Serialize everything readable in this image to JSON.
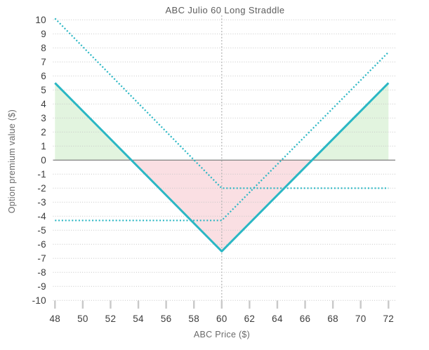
{
  "title": "ABC Julio 60 Long Straddle",
  "chart_data": {
    "type": "line",
    "title": "ABC Julio 60 Long Straddle",
    "xlabel": "ABC Price ($)",
    "ylabel": "Option premium value ($)",
    "xlim": [
      48,
      72
    ],
    "ylim": [
      -10,
      10
    ],
    "x_ticks": [
      48,
      50,
      52,
      54,
      56,
      58,
      60,
      62,
      64,
      66,
      68,
      70,
      72
    ],
    "y_ticks": [
      10,
      9,
      8,
      7,
      6,
      5,
      4,
      3,
      2,
      1,
      0,
      -1,
      -2,
      -3,
      -4,
      -5,
      -6,
      -7,
      -8,
      -9,
      -10
    ],
    "grid": true,
    "legend": "none",
    "strike_x": 60,
    "breakevens": [
      53.5,
      66.5
    ],
    "series": [
      {
        "name": "long-straddle-payoff",
        "style": "solid",
        "color": "#2bb7c4",
        "width": 3,
        "points": [
          [
            48,
            5.5
          ],
          [
            60,
            -6.5
          ],
          [
            72,
            5.5
          ]
        ]
      },
      {
        "name": "long-call-payoff",
        "style": "dotted",
        "color": "#2bb7c4",
        "width": 2.2,
        "points": [
          [
            48,
            -4.3
          ],
          [
            60,
            -4.3
          ],
          [
            72,
            7.7
          ]
        ]
      },
      {
        "name": "long-put-payoff",
        "style": "dotted",
        "color": "#2bb7c4",
        "width": 2.2,
        "points": [
          [
            48,
            10.1
          ],
          [
            60,
            -2.0
          ],
          [
            72,
            -2.0
          ]
        ]
      }
    ],
    "fills": [
      {
        "name": "profit-zone-left",
        "color": "#e2f4df",
        "points": [
          [
            48,
            0
          ],
          [
            48,
            5.5
          ],
          [
            53.5,
            0
          ]
        ]
      },
      {
        "name": "loss-zone",
        "color": "#fadfe3",
        "points": [
          [
            53.5,
            0
          ],
          [
            60,
            -6.5
          ],
          [
            66.5,
            0
          ]
        ]
      },
      {
        "name": "profit-zone-right",
        "color": "#e2f4df",
        "points": [
          [
            66.5,
            0
          ],
          [
            72,
            5.5
          ],
          [
            72,
            0
          ]
        ]
      }
    ]
  },
  "colors": {
    "line_teal": "#2bb7c4",
    "profit_fill": "#e2f4df",
    "loss_fill": "#fadfe3",
    "zero_line": "#8a8a8a",
    "gridline": "#c6c6c6",
    "strike_line": "#b5b5b5",
    "tick_mark": "#c9c9c9",
    "tick_text": "#3c3c3c",
    "title_text": "#5d5d5d",
    "axis_title_text": "#6a6a6a"
  }
}
